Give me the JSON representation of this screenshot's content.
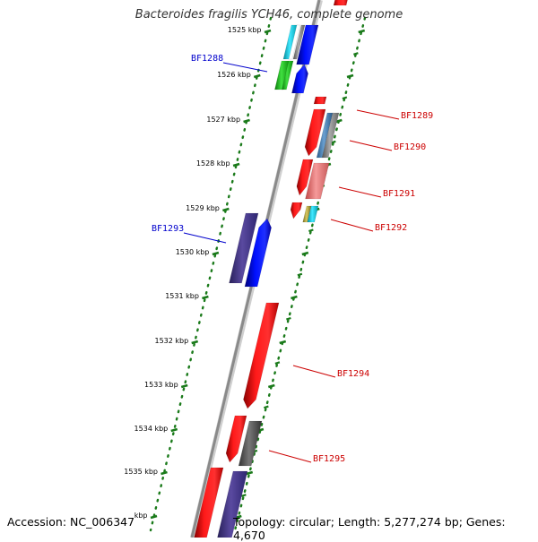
{
  "title": "Bacteroides fragilis YCH46, complete genome",
  "accession": "Accession: NC_006347",
  "summary": "Topology: circular; Length: 5,277,274 bp; Genes: 4,670",
  "ticks": [
    {
      "kbp": 1525,
      "label": "1525 kbp"
    },
    {
      "kbp": 1526,
      "label": "1526 kbp"
    },
    {
      "kbp": 1527,
      "label": "1527 kbp"
    },
    {
      "kbp": 1528,
      "label": "1528 kbp"
    },
    {
      "kbp": 1529,
      "label": "1529 kbp"
    },
    {
      "kbp": 1530,
      "label": "1530 kbp"
    },
    {
      "kbp": 1531,
      "label": "1531 kbp"
    },
    {
      "kbp": 1532,
      "label": "1532 kbp"
    },
    {
      "kbp": 1533,
      "label": "1533 kbp"
    },
    {
      "kbp": 1534,
      "label": "1534 kbp"
    },
    {
      "kbp": 1535,
      "label": "1535 kbp"
    },
    {
      "kbp": 1536,
      "label": "kbp"
    }
  ],
  "genes": [
    {
      "name": "BF1288",
      "strand": "forward"
    },
    {
      "name": "BF1289",
      "strand": "reverse"
    },
    {
      "name": "BF1290",
      "strand": "reverse"
    },
    {
      "name": "BF1291",
      "strand": "reverse"
    },
    {
      "name": "BF1292",
      "strand": "reverse"
    },
    {
      "name": "BF1293",
      "strand": "forward"
    },
    {
      "name": "BF1294",
      "strand": "reverse"
    },
    {
      "name": "BF1295",
      "strand": "reverse"
    }
  ],
  "colors": {
    "backbone": "#888888",
    "ruler_dots": "#1a7a1a",
    "forward_label": "#0000cc",
    "reverse_label": "#cc0000"
  }
}
